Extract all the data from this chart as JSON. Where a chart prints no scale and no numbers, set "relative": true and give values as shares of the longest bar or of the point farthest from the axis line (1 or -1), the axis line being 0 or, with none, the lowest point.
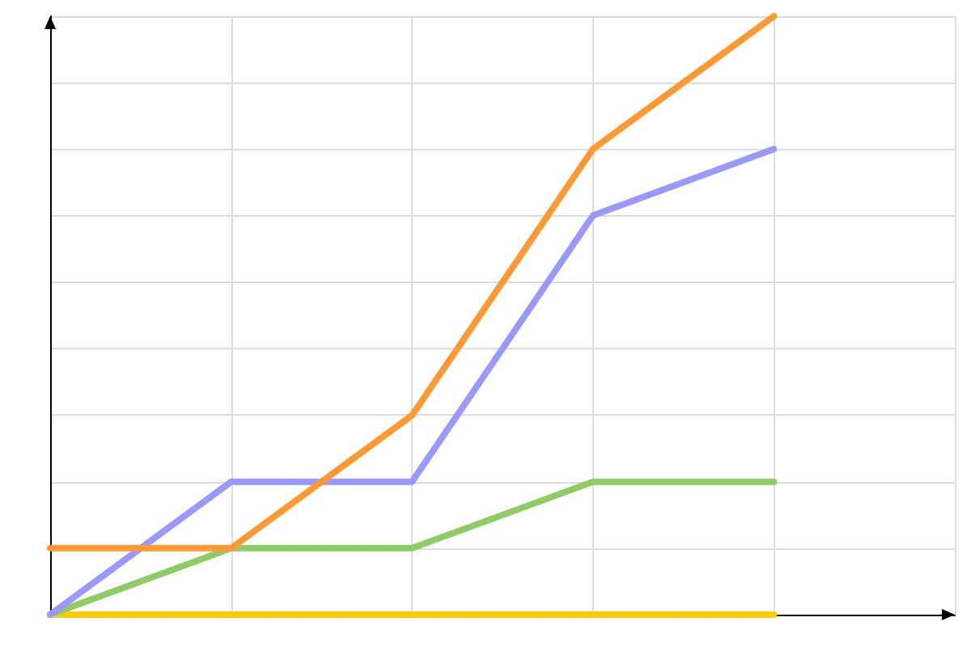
{
  "chart_data": {
    "type": "line",
    "relative": true,
    "categories": [
      null,
      null,
      null,
      null,
      null
    ],
    "grid": true,
    "marker": "none",
    "line_style": "solid",
    "series": [
      {
        "color": "#ffcc00",
        "values": [
          0,
          0,
          0,
          0,
          0
        ]
      },
      {
        "color": "#8fcc66",
        "values": [
          0,
          0.111,
          0.111,
          0.222,
          0.222
        ]
      },
      {
        "color": "#9999ff",
        "values": [
          0,
          0.222,
          0.222,
          0.667,
          0.778
        ]
      },
      {
        "color": "#ff9933",
        "values": [
          0.111,
          0.111,
          0.333,
          0.778,
          1
        ]
      }
    ]
  }
}
